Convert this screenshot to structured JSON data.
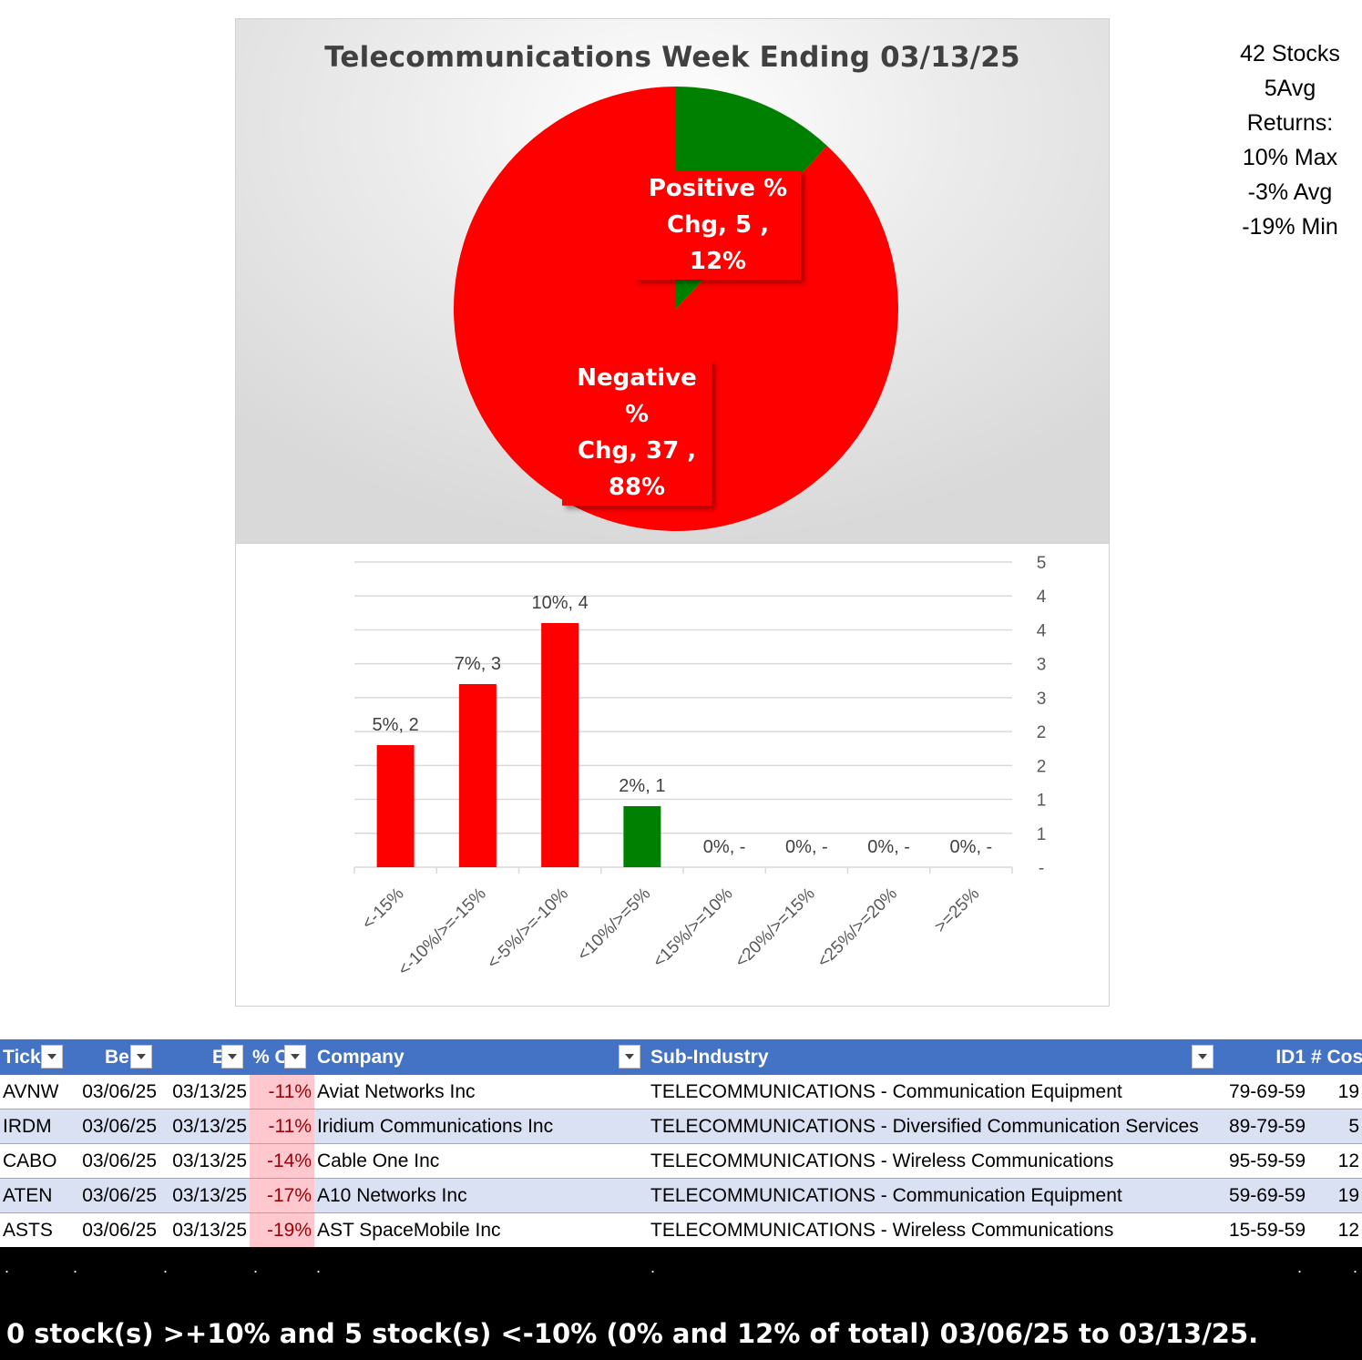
{
  "pie_chart": {
    "title": "Telecommunications  Week Ending 03/13/25",
    "slices": [
      {
        "label_lines": [
          "Positive %",
          "Chg,  5 , 12%"
        ],
        "count": 5,
        "percent": 12,
        "color": "#008000"
      },
      {
        "label_lines": [
          "Negative %",
          "Chg,  37 ,",
          "88%"
        ],
        "count": 37,
        "percent": 88,
        "color": "#ff0000"
      }
    ]
  },
  "stats": {
    "lines": [
      "42 Stocks",
      "5Avg",
      "Returns:",
      "10% Max",
      "-3% Avg",
      "-19% Min"
    ]
  },
  "chart_data": [
    {
      "type": "pie",
      "title": "Telecommunications  Week Ending 03/13/25",
      "categories": [
        "Positive % Chg",
        "Negative % Chg"
      ],
      "values": [
        5,
        37
      ],
      "percents": [
        12,
        88
      ],
      "colors": [
        "#008000",
        "#ff0000"
      ]
    },
    {
      "type": "bar",
      "categories": [
        "<-15%",
        "<-10%/>=-15%",
        "<-5%/>=-10%",
        "<10%/>=5%",
        "<15%/>=10%",
        "<20%/>=15%",
        "<25%/>=20%",
        ">=25%"
      ],
      "values": [
        2,
        3,
        4,
        1,
        0,
        0,
        0,
        0
      ],
      "data_labels": [
        "5%,  2",
        "7%,  3",
        "10%,  4",
        "2%,  1",
        "0%,  -",
        "0%,  -",
        "0%,  -",
        "0%,  -"
      ],
      "colors": [
        "#ff0000",
        "#ff0000",
        "#ff0000",
        "#008000",
        "#008000",
        "#008000",
        "#008000",
        "#008000"
      ],
      "ylim": [
        0,
        5
      ],
      "y_tick_labels": [
        "-",
        "1",
        "1",
        "2",
        "2",
        "3",
        "3",
        "4",
        "4",
        "5"
      ],
      "y_axis_side": "right",
      "grid": true
    }
  ],
  "table": {
    "headers": [
      "Tick",
      "Be",
      "E",
      "% C",
      "Company",
      "Sub-Industry",
      "ID1",
      "# Cos"
    ],
    "rows": [
      [
        "AVNW",
        "03/06/25",
        "03/13/25",
        "-11%",
        "Aviat Networks Inc",
        "TELECOMMUNICATIONS - Communication Equipment",
        "79-69-59",
        "19"
      ],
      [
        "IRDM",
        "03/06/25",
        "03/13/25",
        "-11%",
        "Iridium Communications Inc",
        "TELECOMMUNICATIONS - Diversified Communication Services",
        "89-79-59",
        "5"
      ],
      [
        "CABO",
        "03/06/25",
        "03/13/25",
        "-14%",
        "Cable One Inc",
        "TELECOMMUNICATIONS - Wireless Communications",
        "95-59-59",
        "12"
      ],
      [
        "ATEN",
        "03/06/25",
        "03/13/25",
        "-17%",
        "A10 Networks Inc",
        "TELECOMMUNICATIONS - Communication Equipment",
        "59-69-59",
        "19"
      ],
      [
        "ASTS",
        "03/06/25",
        "03/13/25",
        "-19%",
        "AST SpaceMobile Inc",
        "TELECOMMUNICATIONS - Wireless Communications",
        "15-59-59",
        "12"
      ]
    ]
  },
  "footer": {
    "dot": ".",
    "summary": "0 stock(s) >+10% and 5 stock(s) <-10% (0% and 12% of total) 03/06/25 to 03/13/25."
  }
}
